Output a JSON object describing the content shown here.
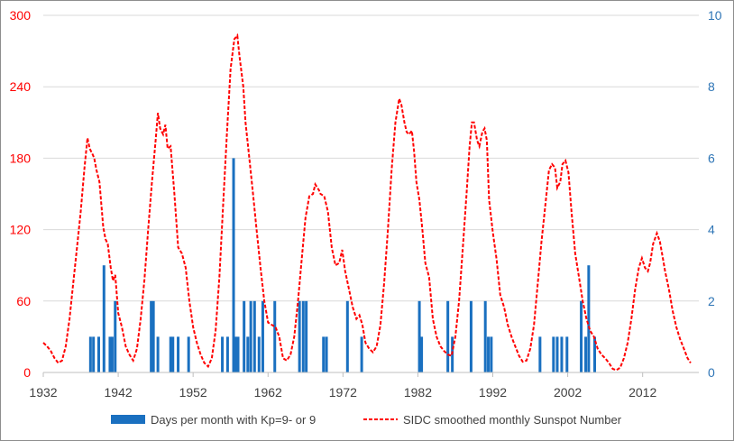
{
  "chart_data": {
    "type": "bar+line",
    "title": "",
    "x_tick_labels": [
      "1932",
      "1942",
      "1952",
      "1962",
      "1972",
      "1982",
      "1992",
      "2002",
      "2012"
    ],
    "x_range": [
      1932,
      2019.5
    ],
    "y_left": {
      "range": [
        0,
        300
      ],
      "ticks": [
        "0",
        "60",
        "120",
        "180",
        "240",
        "300"
      ],
      "color": "#ff0000"
    },
    "y_right": {
      "range": [
        0,
        10
      ],
      "ticks": [
        "0",
        "2",
        "4",
        "6",
        "8",
        "10"
      ],
      "color": "#1f6fba"
    },
    "grid": "horizontal",
    "legend_position": "bottom",
    "bar_series": {
      "name": "Days per month with Kp=9- or 9",
      "axis": "right",
      "color": "#1a70c0",
      "points": [
        [
          1938.3,
          1
        ],
        [
          1938.7,
          1
        ],
        [
          1939.4,
          1
        ],
        [
          1940.1,
          3
        ],
        [
          1940.9,
          1
        ],
        [
          1941.2,
          1
        ],
        [
          1941.6,
          2
        ],
        [
          1946.4,
          2
        ],
        [
          1946.7,
          2
        ],
        [
          1947.3,
          1
        ],
        [
          1949.0,
          1
        ],
        [
          1949.3,
          1
        ],
        [
          1950.0,
          1
        ],
        [
          1951.4,
          1
        ],
        [
          1955.9,
          1
        ],
        [
          1956.6,
          1
        ],
        [
          1957.4,
          6
        ],
        [
          1957.7,
          1
        ],
        [
          1958.0,
          1
        ],
        [
          1958.8,
          2
        ],
        [
          1959.3,
          1
        ],
        [
          1959.7,
          2
        ],
        [
          1960.2,
          2
        ],
        [
          1960.8,
          1
        ],
        [
          1961.3,
          2
        ],
        [
          1962.9,
          2
        ],
        [
          1966.2,
          2
        ],
        [
          1966.7,
          2
        ],
        [
          1967.1,
          2
        ],
        [
          1969.4,
          1
        ],
        [
          1969.8,
          1
        ],
        [
          1972.6,
          2
        ],
        [
          1974.5,
          1
        ],
        [
          1982.2,
          2
        ],
        [
          1982.5,
          1
        ],
        [
          1986.0,
          2
        ],
        [
          1986.6,
          1
        ],
        [
          1989.1,
          2
        ],
        [
          1991.0,
          2
        ],
        [
          1991.4,
          1
        ],
        [
          1991.8,
          1
        ],
        [
          1998.3,
          1
        ],
        [
          2000.1,
          1
        ],
        [
          2000.6,
          1
        ],
        [
          2001.2,
          1
        ],
        [
          2001.9,
          1
        ],
        [
          2003.8,
          2
        ],
        [
          2004.4,
          1
        ],
        [
          2004.8,
          3
        ],
        [
          2005.6,
          1
        ]
      ]
    },
    "line_series": {
      "name": "SIDC smoothed monthly Sunspot Number",
      "axis": "left",
      "color": "#ff0000",
      "style": "dashed",
      "points": [
        [
          1932.0,
          25
        ],
        [
          1932.5,
          22
        ],
        [
          1933.0,
          18
        ],
        [
          1933.5,
          12
        ],
        [
          1934.0,
          8
        ],
        [
          1934.5,
          10
        ],
        [
          1935.0,
          22
        ],
        [
          1935.5,
          45
        ],
        [
          1936.0,
          75
        ],
        [
          1936.5,
          105
        ],
        [
          1937.0,
          135
        ],
        [
          1937.5,
          172
        ],
        [
          1937.9,
          197
        ],
        [
          1938.2,
          188
        ],
        [
          1938.6,
          183
        ],
        [
          1938.8,
          180
        ],
        [
          1939.1,
          170
        ],
        [
          1939.5,
          160
        ],
        [
          1940.0,
          122
        ],
        [
          1940.3,
          112
        ],
        [
          1940.6,
          108
        ],
        [
          1941.0,
          88
        ],
        [
          1941.3,
          77
        ],
        [
          1941.6,
          82
        ],
        [
          1942.0,
          50
        ],
        [
          1942.5,
          38
        ],
        [
          1943.0,
          22
        ],
        [
          1943.5,
          15
        ],
        [
          1944.0,
          10
        ],
        [
          1944.5,
          20
        ],
        [
          1945.0,
          45
        ],
        [
          1945.5,
          78
        ],
        [
          1946.0,
          120
        ],
        [
          1946.5,
          160
        ],
        [
          1947.0,
          195
        ],
        [
          1947.3,
          218
        ],
        [
          1947.6,
          205
        ],
        [
          1948.0,
          200
        ],
        [
          1948.3,
          208
        ],
        [
          1948.6,
          188
        ],
        [
          1949.0,
          190
        ],
        [
          1949.5,
          150
        ],
        [
          1950.0,
          105
        ],
        [
          1950.5,
          100
        ],
        [
          1951.0,
          88
        ],
        [
          1951.5,
          60
        ],
        [
          1952.0,
          38
        ],
        [
          1952.5,
          25
        ],
        [
          1953.0,
          15
        ],
        [
          1953.5,
          8
        ],
        [
          1954.0,
          5
        ],
        [
          1954.5,
          12
        ],
        [
          1955.0,
          35
        ],
        [
          1955.5,
          80
        ],
        [
          1956.0,
          140
        ],
        [
          1956.5,
          200
        ],
        [
          1957.0,
          255
        ],
        [
          1957.5,
          280
        ],
        [
          1957.9,
          283
        ],
        [
          1958.2,
          265
        ],
        [
          1958.7,
          240
        ],
        [
          1959.0,
          210
        ],
        [
          1959.5,
          180
        ],
        [
          1960.0,
          150
        ],
        [
          1960.5,
          118
        ],
        [
          1961.0,
          88
        ],
        [
          1961.5,
          60
        ],
        [
          1962.0,
          42
        ],
        [
          1962.5,
          40
        ],
        [
          1963.0,
          38
        ],
        [
          1963.5,
          30
        ],
        [
          1964.0,
          12
        ],
        [
          1964.5,
          10
        ],
        [
          1965.0,
          15
        ],
        [
          1965.5,
          30
        ],
        [
          1966.0,
          60
        ],
        [
          1966.5,
          95
        ],
        [
          1967.0,
          130
        ],
        [
          1967.5,
          148
        ],
        [
          1968.0,
          150
        ],
        [
          1968.3,
          158
        ],
        [
          1968.8,
          153
        ],
        [
          1969.0,
          150
        ],
        [
          1969.5,
          148
        ],
        [
          1970.0,
          135
        ],
        [
          1970.5,
          105
        ],
        [
          1971.0,
          90
        ],
        [
          1971.5,
          92
        ],
        [
          1971.9,
          103
        ],
        [
          1972.3,
          85
        ],
        [
          1972.8,
          70
        ],
        [
          1973.3,
          55
        ],
        [
          1973.8,
          45
        ],
        [
          1974.2,
          48
        ],
        [
          1974.6,
          40
        ],
        [
          1975.0,
          25
        ],
        [
          1975.5,
          20
        ],
        [
          1976.0,
          17
        ],
        [
          1976.5,
          22
        ],
        [
          1977.0,
          40
        ],
        [
          1977.5,
          75
        ],
        [
          1978.0,
          120
        ],
        [
          1978.5,
          170
        ],
        [
          1979.0,
          210
        ],
        [
          1979.5,
          230
        ],
        [
          1979.8,
          225
        ],
        [
          1980.2,
          210
        ],
        [
          1980.5,
          202
        ],
        [
          1980.8,
          200
        ],
        [
          1981.2,
          203
        ],
        [
          1981.5,
          185
        ],
        [
          1981.8,
          160
        ],
        [
          1982.2,
          145
        ],
        [
          1982.6,
          120
        ],
        [
          1983.0,
          92
        ],
        [
          1983.5,
          80
        ],
        [
          1984.0,
          45
        ],
        [
          1984.5,
          30
        ],
        [
          1985.0,
          22
        ],
        [
          1985.5,
          18
        ],
        [
          1986.0,
          15
        ],
        [
          1986.5,
          14
        ],
        [
          1987.0,
          30
        ],
        [
          1987.5,
          60
        ],
        [
          1988.0,
          105
        ],
        [
          1988.5,
          150
        ],
        [
          1988.9,
          190
        ],
        [
          1989.2,
          210
        ],
        [
          1989.5,
          210
        ],
        [
          1989.9,
          195
        ],
        [
          1990.2,
          190
        ],
        [
          1990.6,
          202
        ],
        [
          1990.9,
          205
        ],
        [
          1991.2,
          195
        ],
        [
          1991.5,
          145
        ],
        [
          1992.0,
          118
        ],
        [
          1992.5,
          95
        ],
        [
          1993.0,
          65
        ],
        [
          1993.5,
          55
        ],
        [
          1994.0,
          40
        ],
        [
          1994.5,
          30
        ],
        [
          1995.0,
          22
        ],
        [
          1995.5,
          14
        ],
        [
          1996.0,
          9
        ],
        [
          1996.5,
          10
        ],
        [
          1997.0,
          20
        ],
        [
          1997.5,
          40
        ],
        [
          1998.0,
          75
        ],
        [
          1998.5,
          110
        ],
        [
          1999.0,
          140
        ],
        [
          1999.5,
          170
        ],
        [
          1999.9,
          175
        ],
        [
          2000.3,
          172
        ],
        [
          2000.6,
          155
        ],
        [
          2001.0,
          160
        ],
        [
          2001.3,
          175
        ],
        [
          2001.7,
          178
        ],
        [
          2002.1,
          168
        ],
        [
          2002.5,
          135
        ],
        [
          2003.0,
          100
        ],
        [
          2003.5,
          80
        ],
        [
          2004.0,
          60
        ],
        [
          2004.5,
          45
        ],
        [
          2005.0,
          35
        ],
        [
          2005.5,
          30
        ],
        [
          2006.0,
          20
        ],
        [
          2006.5,
          15
        ],
        [
          2007.0,
          12
        ],
        [
          2007.5,
          8
        ],
        [
          2008.0,
          3
        ],
        [
          2008.5,
          2
        ],
        [
          2009.0,
          4
        ],
        [
          2009.5,
          12
        ],
        [
          2010.0,
          25
        ],
        [
          2010.5,
          45
        ],
        [
          2011.0,
          70
        ],
        [
          2011.5,
          88
        ],
        [
          2011.9,
          96
        ],
        [
          2012.3,
          88
        ],
        [
          2012.7,
          85
        ],
        [
          2013.0,
          92
        ],
        [
          2013.4,
          108
        ],
        [
          2013.9,
          117
        ],
        [
          2014.3,
          110
        ],
        [
          2014.7,
          96
        ],
        [
          2015.0,
          85
        ],
        [
          2015.5,
          70
        ],
        [
          2016.0,
          52
        ],
        [
          2016.5,
          38
        ],
        [
          2017.0,
          28
        ],
        [
          2017.5,
          20
        ],
        [
          2018.0,
          12
        ],
        [
          2018.4,
          8
        ]
      ]
    }
  }
}
